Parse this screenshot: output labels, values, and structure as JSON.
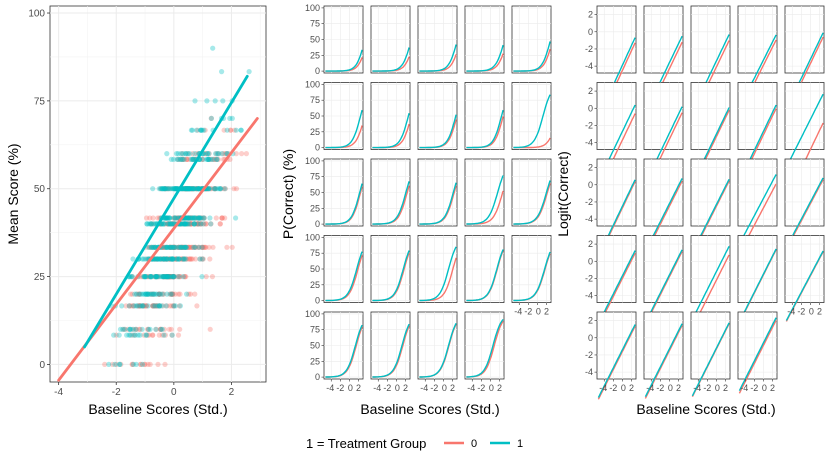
{
  "colors": {
    "control": "#F8766D",
    "treatment": "#00BFC4",
    "grid": "#ebebeb",
    "frame": "#333333",
    "tick_text": "#4d4d4d"
  },
  "legend": {
    "title": "1 = Treatment Group",
    "placement": "bottom",
    "items": [
      {
        "label": "0",
        "color": "#F8766D"
      },
      {
        "label": "1",
        "color": "#00BFC4"
      }
    ]
  },
  "chart_data": [
    {
      "type": "scatter",
      "panel": "scatter-panel",
      "xlabel": "Baseline Scores (Std.)",
      "ylabel": "Mean Score (%)",
      "xlim": [
        -4.3,
        3.2
      ],
      "ylim": [
        -5,
        102
      ],
      "x_ticks": [
        -4,
        -2,
        0,
        2
      ],
      "x_tick_labels": [
        "-4",
        "-2",
        "0",
        "2"
      ],
      "y_ticks": [
        0,
        25,
        50,
        75,
        100
      ],
      "y_tick_labels": [
        "0",
        "25",
        "50",
        "75",
        "100"
      ],
      "grid": true,
      "point_note": "about 1,500 overlapping points per group on a grid of score values (multiples of 8.33 and 10); omitted individually",
      "fit_lines": [
        {
          "name": "0",
          "x": [
            -4.0,
            2.9
          ],
          "y": [
            -4.5,
            70
          ]
        },
        {
          "name": "1",
          "x": [
            -3.1,
            2.55
          ],
          "y": [
            5,
            82
          ]
        }
      ]
    },
    {
      "type": "line",
      "panel": "probability-facets",
      "xlabel": "Baseline Scores (Std.)",
      "ylabel": "P(Correct) (%)",
      "x_ticks": [
        -4,
        -2,
        0,
        2
      ],
      "x_tick_labels": [
        "-4",
        "-2",
        "0",
        "2"
      ],
      "y_ticks": [
        0,
        25,
        50,
        75,
        100
      ],
      "y_tick_labels": [
        "0",
        "25",
        "50",
        "75",
        "100"
      ],
      "facet_count": 24,
      "layout": "5 columns x 5 rows, last row 4 panels"
    },
    {
      "type": "line",
      "panel": "logit-facets",
      "xlabel": "Baseline Scores (Std.)",
      "ylabel": "Logit(Correct)",
      "x_ticks": [
        -4,
        -2,
        0,
        2
      ],
      "x_tick_labels": [
        "-4",
        "-2",
        "0",
        "2"
      ],
      "y_ticks": [
        -4,
        -2,
        0,
        2
      ],
      "y_tick_labels": [
        "-4",
        "-2",
        "0",
        "2"
      ],
      "facet_count": 24,
      "layout": "5 columns x 5 rows, last row 4 panels"
    }
  ],
  "facets": [
    {
      "b0": -4.5,
      "s0": 1.15,
      "b1": -3.9,
      "s1": 1.15
    },
    {
      "b0": -4.3,
      "s0": 1.1,
      "b1": -3.6,
      "s1": 1.1
    },
    {
      "b0": -4.1,
      "s0": 1.1,
      "b1": -3.4,
      "s1": 1.1
    },
    {
      "b0": -3.9,
      "s0": 1.05,
      "b1": -3.3,
      "s1": 1.05
    },
    {
      "b0": -3.7,
      "s0": 1.1,
      "b1": -3.2,
      "s1": 1.1
    },
    {
      "b0": -3.7,
      "s0": 1.1,
      "b1": -2.7,
      "s1": 1.1
    },
    {
      "b0": -3.6,
      "s0": 1.1,
      "b1": -2.9,
      "s1": 1.1
    },
    {
      "b0": -3.3,
      "s0": 1.1,
      "b1": -3.0,
      "s1": 1.1
    },
    {
      "b0": -3.1,
      "s0": 1.1,
      "b1": -2.7,
      "s1": 1.1
    },
    {
      "b0": -4.8,
      "s0": 1.1,
      "b1": -1.3,
      "s1": 1.05
    },
    {
      "b0": -2.7,
      "s0": 1.1,
      "b1": -2.5,
      "s1": 1.1
    },
    {
      "b0": -2.5,
      "s0": 1.05,
      "b1": -2.2,
      "s1": 1.05
    },
    {
      "b0": -2.5,
      "s0": 1.05,
      "b1": -2.3,
      "s1": 1.05
    },
    {
      "b0": -2.7,
      "s0": 1.0,
      "b1": -1.6,
      "s1": 1.0
    },
    {
      "b0": -2.2,
      "s0": 1.0,
      "b1": -2.0,
      "s1": 1.0
    },
    {
      "b0": -2.0,
      "s0": 1.05,
      "b1": -1.7,
      "s1": 1.05
    },
    {
      "b0": -1.8,
      "s0": 1.05,
      "b1": -1.6,
      "s1": 1.05
    },
    {
      "b0": -2.2,
      "s0": 1.05,
      "b1": -1.2,
      "s1": 1.05
    },
    {
      "b0": -1.6,
      "s0": 1.05,
      "b1": -1.5,
      "s1": 1.05
    },
    {
      "b0": -1.7,
      "s0": 1.0,
      "b1": -1.6,
      "s1": 1.0
    },
    {
      "b0": -1.6,
      "s0": 1.05,
      "b1": -1.4,
      "s1": 1.05
    },
    {
      "b0": -1.5,
      "s0": 1.05,
      "b1": -1.3,
      "s1": 1.05
    },
    {
      "b0": -1.3,
      "s0": 1.05,
      "b1": -1.2,
      "s1": 1.05
    },
    {
      "b0": -0.9,
      "s0": 1.05,
      "b1": -0.6,
      "s1": 1.05
    }
  ]
}
